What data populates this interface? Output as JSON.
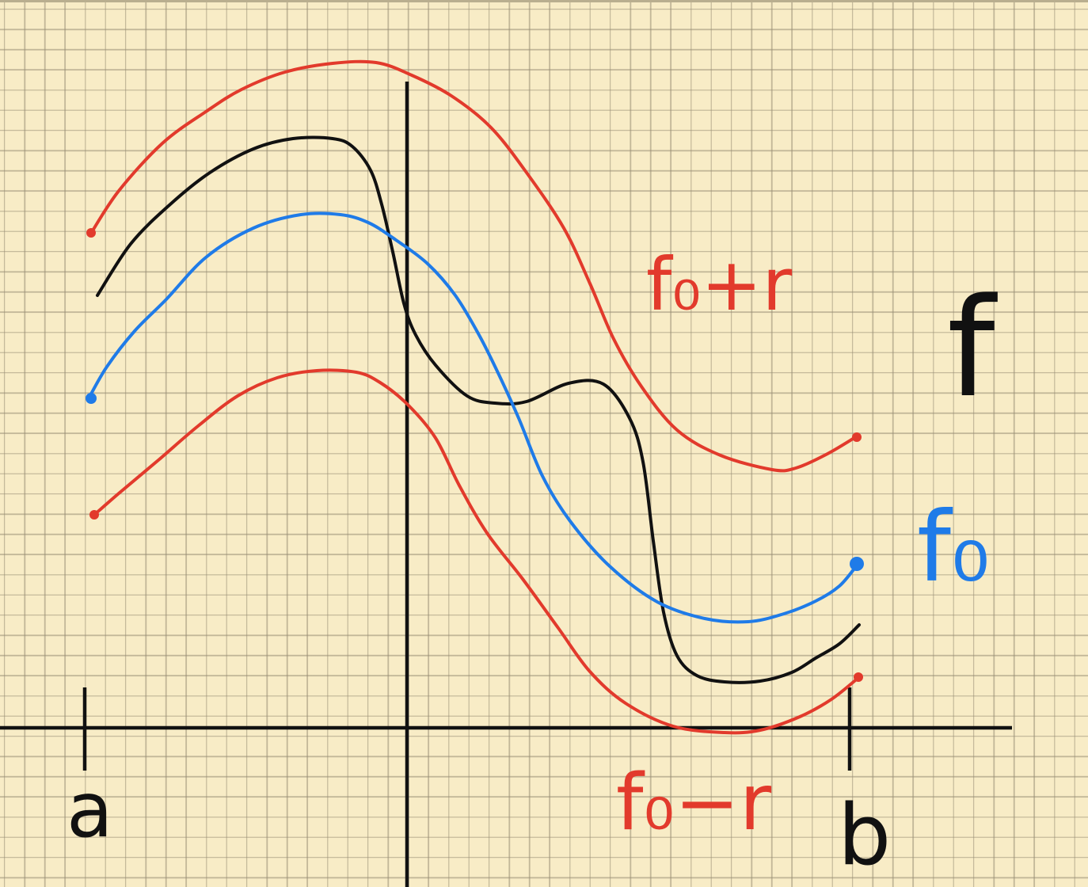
{
  "labels": {
    "a": "a",
    "b": "b",
    "f": "f",
    "f0": "f₀",
    "f0_plus_r": "f₀+r",
    "f0_minus_r": "f₀−r"
  },
  "colors": {
    "paper": "#f8ecc6",
    "axis": "#111111",
    "f": "#111111",
    "f0": "#1f7be8",
    "band": "#e23a2c"
  }
}
